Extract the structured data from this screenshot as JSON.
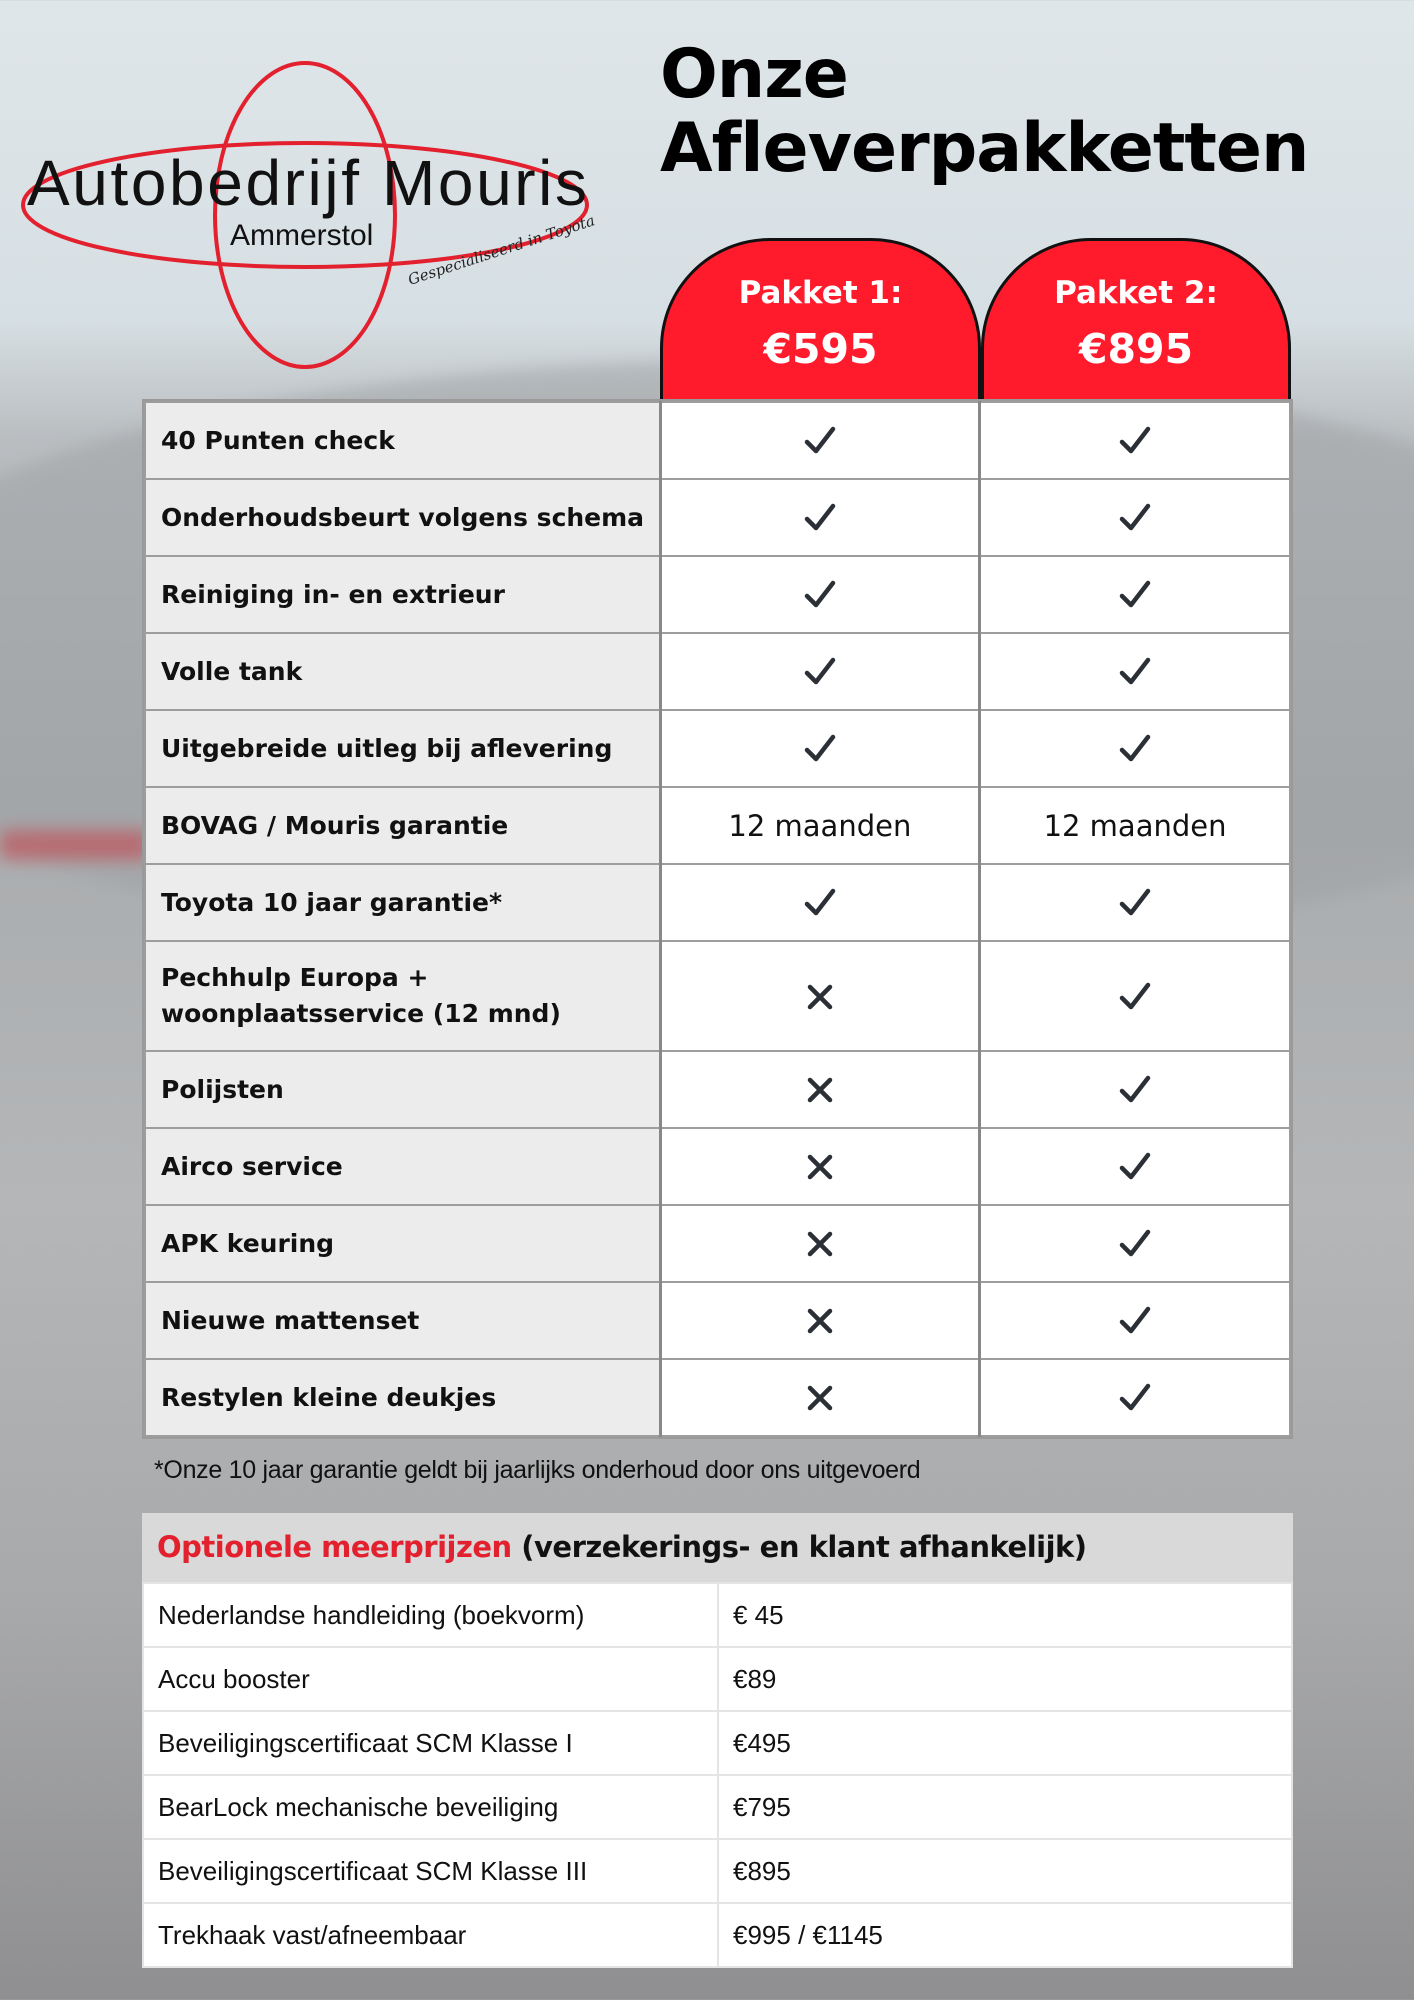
{
  "logo": {
    "name": "Autobedrijf Mouris",
    "location": "Ammerstol",
    "tagline": "Gespecialiseerd in Toyota",
    "color": "#e3202e"
  },
  "title": {
    "line1": "Onze",
    "line2": "Afleverpakketten"
  },
  "packages": [
    {
      "name": "Pakket 1:",
      "price": "€595"
    },
    {
      "name": "Pakket 2:",
      "price": "€895"
    }
  ],
  "colors": {
    "accent": "#ff1a2c",
    "label_bg": "#ececec",
    "header_bg": "#d9d9d9"
  },
  "features": [
    {
      "label": "40 Punten check",
      "p1": "check",
      "p2": "check"
    },
    {
      "label": "Onderhoudsbeurt volgens schema",
      "p1": "check",
      "p2": "check"
    },
    {
      "label": "Reiniging in- en extrieur",
      "p1": "check",
      "p2": "check"
    },
    {
      "label": "Volle tank",
      "p1": "check",
      "p2": "check"
    },
    {
      "label": "Uitgebreide uitleg bij aflevering",
      "p1": "check",
      "p2": "check"
    },
    {
      "label": "BOVAG / Mouris garantie",
      "p1": "12 maanden",
      "p2": "12 maanden"
    },
    {
      "label": "Toyota 10 jaar garantie*",
      "p1": "check",
      "p2": "check"
    },
    {
      "label": "Pechhulp Europa + woonplaatsservice (12 mnd)",
      "p1": "cross",
      "p2": "check"
    },
    {
      "label": "Polijsten",
      "p1": "cross",
      "p2": "check"
    },
    {
      "label": "Airco service",
      "p1": "cross",
      "p2": "check"
    },
    {
      "label": "APK keuring",
      "p1": "cross",
      "p2": "check"
    },
    {
      "label": "Nieuwe mattenset",
      "p1": "cross",
      "p2": "check"
    },
    {
      "label": "Restylen kleine deukjes",
      "p1": "cross",
      "p2": "check"
    }
  ],
  "footnote": "*Onze 10 jaar garantie geldt bij jaarlijks onderhoud door ons uitgevoerd",
  "optional": {
    "title_red": "Optionele meerprijzen",
    "title_rest": "(verzekerings- en klant afhankelijk)",
    "items": [
      {
        "label": "Nederlandse handleiding (boekvorm)",
        "price": "€ 45"
      },
      {
        "label": "Accu booster",
        "price": "€89"
      },
      {
        "label": "Beveiligingscertificaat SCM Klasse I",
        "price": "€495"
      },
      {
        "label": "BearLock mechanische beveiliging",
        "price": "€795"
      },
      {
        "label": "Beveiligingscertificaat SCM Klasse III",
        "price": "€895"
      },
      {
        "label": "Trekhaak vast/afneembaar",
        "price": "€995 / €1145"
      }
    ]
  }
}
